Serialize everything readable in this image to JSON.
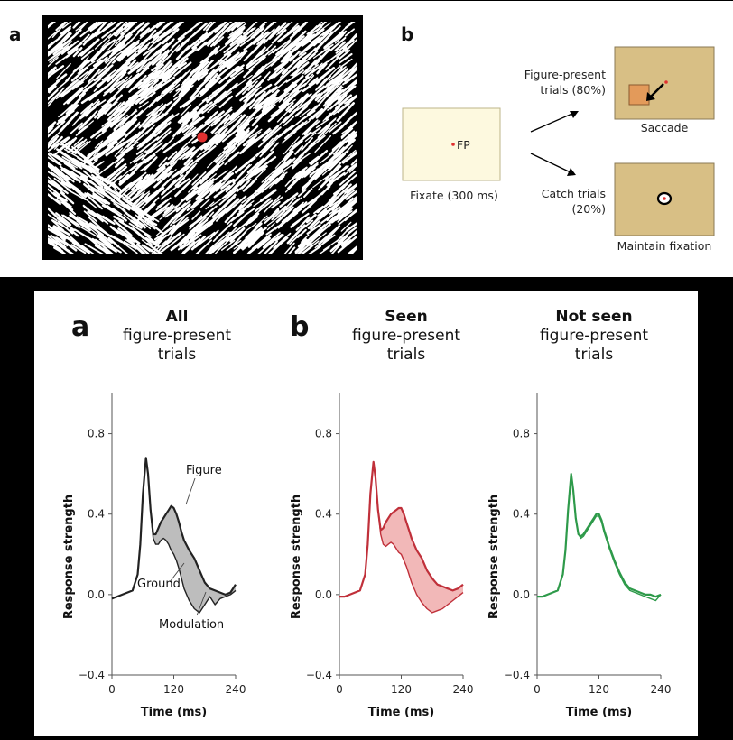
{
  "top": {
    "panel_a_letter": "a",
    "panel_b_letter": "b",
    "fixation_label": "FP",
    "fixate_caption": "Fixate (300 ms)",
    "figure_present_line1": "Figure-present",
    "figure_present_line2": "trials (80%)",
    "saccade_caption": "Saccade",
    "catch_line1": "Catch trials",
    "catch_line2": "(20%)",
    "maintain_caption": "Maintain fixation",
    "colors": {
      "fixation_screen": "#fdf9df",
      "trial_screen": "#d8bf85",
      "figure_patch": "#e39a5a",
      "fixation_dot": "#e03030"
    }
  },
  "bottom": {
    "letter_a": "a",
    "letter_b": "b",
    "titles": [
      {
        "bold": "All",
        "line2": "figure-present",
        "line3": "trials"
      },
      {
        "bold": "Seen",
        "line2": "figure-present",
        "line3": "trials"
      },
      {
        "bold": "Not seen",
        "line2": "figure-present",
        "line3": "trials"
      }
    ],
    "annotations": {
      "figure": "Figure",
      "ground": "Ground",
      "modulation": "Modulation"
    }
  },
  "chart_data": [
    {
      "type": "line",
      "xlabel": "Time (ms)",
      "ylabel": "Response strength",
      "xlim": [
        0,
        240
      ],
      "ylim": [
        -0.4,
        1.0
      ],
      "xticks": [
        "0",
        "120",
        "240"
      ],
      "yticks": [
        "−0.4",
        "0.0",
        "0.4",
        "0.8"
      ],
      "x": [
        0,
        10,
        20,
        30,
        40,
        50,
        55,
        60,
        66,
        70,
        75,
        80,
        85,
        90,
        95,
        100,
        105,
        110,
        115,
        120,
        125,
        130,
        135,
        140,
        150,
        160,
        170,
        180,
        190,
        200,
        210,
        220,
        230,
        240
      ],
      "series": [
        {
          "name": "Figure",
          "color": "#222222",
          "values": [
            -0.02,
            -0.01,
            0.0,
            0.01,
            0.02,
            0.1,
            0.25,
            0.5,
            0.68,
            0.6,
            0.42,
            0.3,
            0.3,
            0.33,
            0.36,
            0.38,
            0.4,
            0.42,
            0.44,
            0.43,
            0.4,
            0.36,
            0.31,
            0.27,
            0.22,
            0.18,
            0.12,
            0.06,
            0.03,
            0.02,
            0.01,
            0.0,
            0.01,
            0.05
          ]
        },
        {
          "name": "Ground",
          "color": "#222222",
          "values": [
            -0.02,
            -0.01,
            0.0,
            0.01,
            0.02,
            0.1,
            0.25,
            0.5,
            0.68,
            0.6,
            0.42,
            0.28,
            0.25,
            0.25,
            0.27,
            0.28,
            0.27,
            0.25,
            0.22,
            0.2,
            0.17,
            0.13,
            0.08,
            0.03,
            -0.03,
            -0.07,
            -0.09,
            -0.05,
            -0.01,
            -0.05,
            -0.02,
            -0.01,
            0.0,
            0.02
          ]
        }
      ],
      "fill_between": {
        "upper": "Figure",
        "lower": "Ground",
        "color": "#bdbdbd",
        "label": "Modulation"
      }
    },
    {
      "type": "line",
      "xlabel": "Time (ms)",
      "ylabel": "Response strength",
      "xlim": [
        0,
        240
      ],
      "ylim": [
        -0.4,
        1.0
      ],
      "xticks": [
        "0",
        "120",
        "240"
      ],
      "yticks": [
        "−0.4",
        "0.0",
        "0.4",
        "0.8"
      ],
      "x": [
        0,
        10,
        20,
        30,
        40,
        50,
        55,
        60,
        66,
        70,
        75,
        80,
        85,
        90,
        95,
        100,
        105,
        110,
        115,
        120,
        125,
        130,
        135,
        140,
        150,
        160,
        170,
        180,
        190,
        200,
        210,
        220,
        230,
        240
      ],
      "series": [
        {
          "color": "#c0303a",
          "values": [
            -0.01,
            -0.01,
            0.0,
            0.01,
            0.02,
            0.1,
            0.25,
            0.5,
            0.66,
            0.58,
            0.42,
            0.32,
            0.33,
            0.36,
            0.38,
            0.4,
            0.41,
            0.42,
            0.43,
            0.43,
            0.4,
            0.36,
            0.32,
            0.28,
            0.22,
            0.18,
            0.12,
            0.08,
            0.05,
            0.04,
            0.03,
            0.02,
            0.03,
            0.05
          ]
        },
        {
          "color": "#c0303a",
          "values": [
            -0.01,
            -0.01,
            0.0,
            0.01,
            0.02,
            0.1,
            0.25,
            0.5,
            0.66,
            0.58,
            0.42,
            0.3,
            0.25,
            0.24,
            0.25,
            0.26,
            0.25,
            0.23,
            0.21,
            0.2,
            0.17,
            0.14,
            0.1,
            0.06,
            0.0,
            -0.04,
            -0.07,
            -0.09,
            -0.08,
            -0.07,
            -0.05,
            -0.03,
            -0.01,
            0.01
          ]
        }
      ],
      "fill_between": {
        "color": "#f2b8b8"
      }
    },
    {
      "type": "line",
      "xlabel": "Time (ms)",
      "ylabel": "Response strength",
      "xlim": [
        0,
        240
      ],
      "ylim": [
        -0.4,
        1.0
      ],
      "xticks": [
        "0",
        "120",
        "240"
      ],
      "yticks": [
        "−0.4",
        "0.0",
        "0.4",
        "0.8"
      ],
      "x": [
        0,
        10,
        20,
        30,
        40,
        50,
        55,
        60,
        66,
        70,
        75,
        80,
        85,
        90,
        95,
        100,
        105,
        110,
        115,
        120,
        125,
        130,
        135,
        140,
        150,
        160,
        170,
        180,
        190,
        200,
        210,
        220,
        230,
        240
      ],
      "series": [
        {
          "color": "#2e9a4a",
          "values": [
            -0.01,
            -0.01,
            0.0,
            0.01,
            0.02,
            0.1,
            0.22,
            0.42,
            0.6,
            0.52,
            0.38,
            0.3,
            0.29,
            0.3,
            0.32,
            0.34,
            0.36,
            0.38,
            0.4,
            0.4,
            0.37,
            0.32,
            0.28,
            0.24,
            0.17,
            0.11,
            0.06,
            0.03,
            0.02,
            0.01,
            0.0,
            0.0,
            -0.01,
            0.0
          ]
        },
        {
          "color": "#2e9a4a",
          "values": [
            -0.01,
            -0.01,
            0.0,
            0.01,
            0.02,
            0.1,
            0.22,
            0.42,
            0.6,
            0.52,
            0.38,
            0.3,
            0.28,
            0.29,
            0.31,
            0.33,
            0.35,
            0.37,
            0.39,
            0.39,
            0.36,
            0.31,
            0.27,
            0.23,
            0.16,
            0.1,
            0.05,
            0.02,
            0.01,
            0.0,
            -0.01,
            -0.02,
            -0.03,
            0.0
          ]
        }
      ]
    }
  ]
}
